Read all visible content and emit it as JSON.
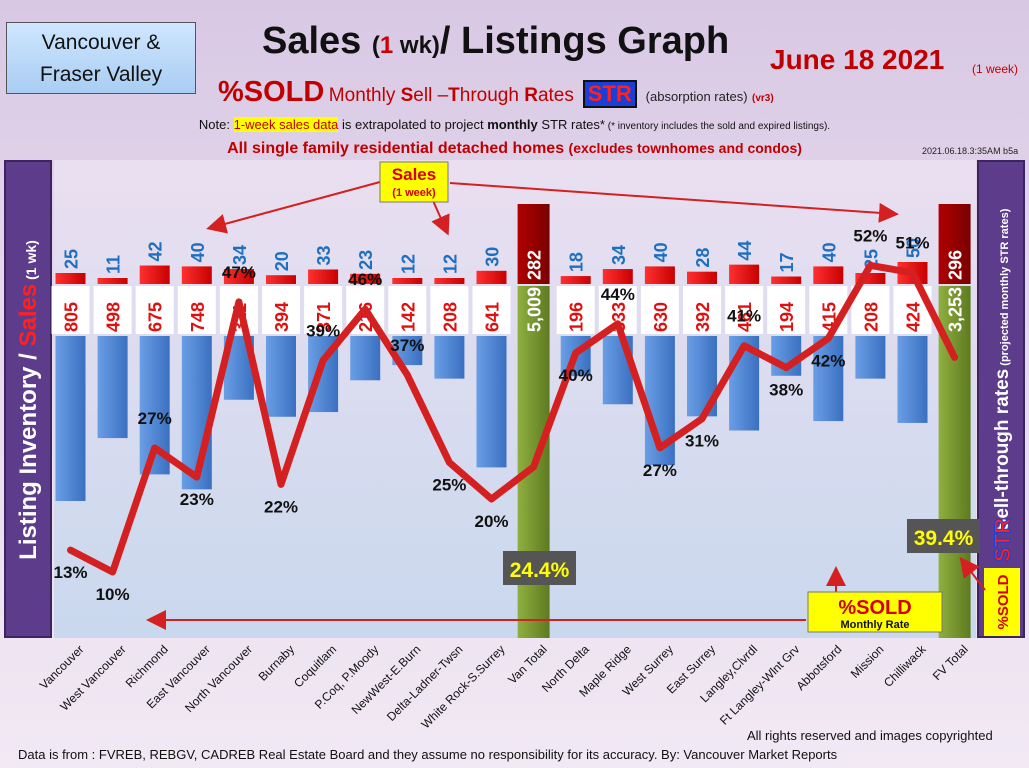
{
  "header": {
    "region_line1": "Vancouver &",
    "region_line2": "Fraser Valley",
    "title_a": "Sales ",
    "title_paren_open": "(",
    "title_one": "1",
    "title_wk": " wk)",
    "title_b": "/ Listings Graph",
    "date": "June 18  2021",
    "date_note": "(1 week)",
    "sold_label": "%SOLD",
    "monthly_label": "Monthly ",
    "sell_s": "S",
    "sell_rest": "ell –",
    "through_t": "T",
    "through_rest": "hrough ",
    "rates_r": "R",
    "rates_rest": "ates",
    "str_badge": "STR",
    "absorption": "(absorption rates)",
    "version": "(vr3)",
    "note_prefix": "Note: ",
    "note_highlight": "1-week sales data",
    "note_mid": " is extrapolated to project ",
    "note_bold": "monthly",
    "note_suffix": " STR rates*",
    "note_small": " (* inventory includes the sold and expired listings).",
    "scope_main": "All single family residential detached homes ",
    "scope_paren": "(excludes townhomes and condos)",
    "stamp": "2021.06.18.3:35AM b5a"
  },
  "axes": {
    "left_inventory": "Listing Inventory",
    "left_slash": " / ",
    "left_sales": "Sales",
    "left_wk": " (1 wk)",
    "right_main": "Sell-through rates",
    "right_sub": " (projected monthly STR rates)",
    "right_str": "STR",
    "right_sold": "%SOLD"
  },
  "annotations": {
    "sales_callout_line1": "Sales",
    "sales_callout_line2": "(1 week)",
    "sold_callout_line1": "%SOLD",
    "sold_callout_line2": "Monthly Rate",
    "van_total_badge": "24.4%",
    "fv_total_badge": "39.4%"
  },
  "footer": {
    "rights": "All rights reserved and  images copyrighted",
    "source": "Data is from : FVREB, REBGV, CADREB Real Estate Board and they assume no responsibility for its accuracy. By: Vancouver Market Reports"
  },
  "colors": {
    "sales_bar": "#e01010",
    "inventory_bar": "#4a86d8",
    "total_bar": "#7a9a30",
    "line": "#d42020",
    "sales_label_area": "#1f6fc0",
    "sales_label_total": "#ffffff",
    "inventory_label": "#e01010"
  },
  "chart_data": {
    "type": "bar",
    "categories": [
      "Vancouver",
      "West Vancouver",
      "Richmond",
      "East Vancouver",
      "North Vancouver",
      "Burnaby",
      "Coquitlam",
      "P.Coq, P.Moody",
      "NewWest-E.Burn",
      "Delta-Ladner-Twsn",
      "White Rock-S.Surrey",
      "Van Total",
      "North Delta",
      "Maple Ridge",
      "West Surrey",
      "East Surrey",
      "Langley,Clvrdl",
      "Ft Langley-Wlnt Grv",
      "Abbotsford",
      "Mission",
      "Chilliwack",
      "FV Total"
    ],
    "series": [
      {
        "name": "Sales",
        "values": [
          25,
          11,
          42,
          40,
          34,
          20,
          33,
          23,
          12,
          12,
          30,
          282,
          18,
          34,
          40,
          28,
          44,
          17,
          40,
          25,
          50,
          296
        ]
      },
      {
        "name": "Listing Inventory",
        "values": [
          805,
          498,
          675,
          748,
          311,
          394,
          371,
          216,
          142,
          208,
          641,
          5009,
          196,
          333,
          630,
          392,
          461,
          194,
          415,
          208,
          424,
          3253
        ]
      },
      {
        "name": "%SOLD",
        "values": [
          13,
          10,
          27,
          23,
          47,
          22,
          39,
          46,
          37,
          25,
          20,
          24.4,
          40,
          44,
          27,
          31,
          41,
          38,
          42,
          52,
          51,
          39.4
        ]
      }
    ],
    "inventory_labels": [
      "805",
      "498",
      "675",
      "748",
      "311",
      "394",
      "371",
      "216",
      "142",
      "208",
      "641",
      "5,009",
      "196",
      "333",
      "630",
      "392",
      "461",
      "194",
      "415",
      "208",
      "424",
      "3,253"
    ],
    "str_labels": [
      "13%",
      "10%",
      "27%",
      "23%",
      "47%",
      "22%",
      "39%",
      "46%",
      "37%",
      "25%",
      "20%",
      "",
      "40%",
      "44%",
      "27%",
      "31%",
      "41%",
      "38%",
      "42%",
      "52%",
      "51%",
      ""
    ],
    "totals": [
      "Van Total",
      "FV Total"
    ]
  }
}
